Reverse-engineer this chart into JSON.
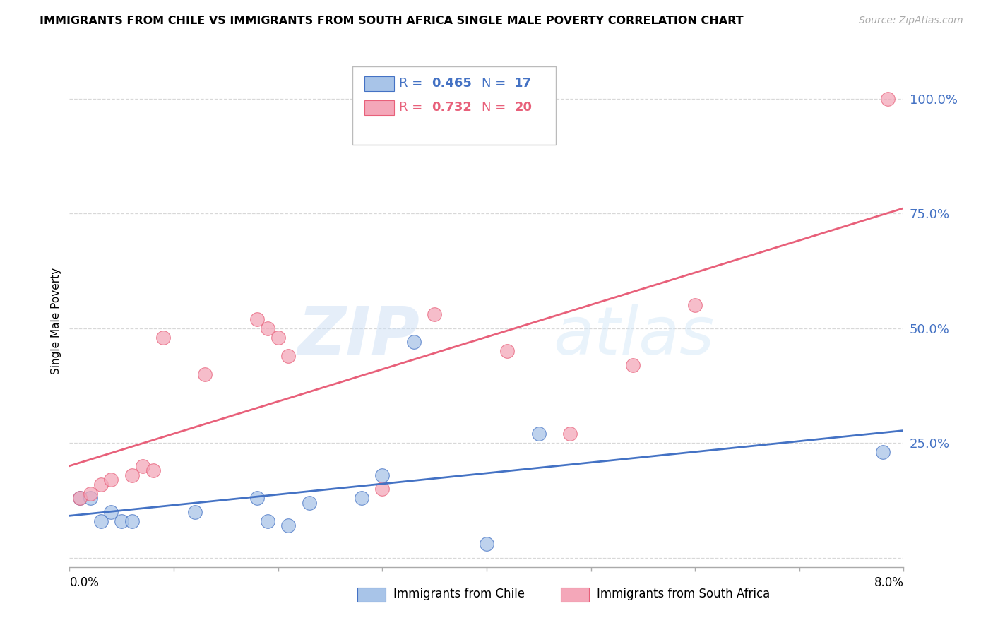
{
  "title": "IMMIGRANTS FROM CHILE VS IMMIGRANTS FROM SOUTH AFRICA SINGLE MALE POVERTY CORRELATION CHART",
  "source": "Source: ZipAtlas.com",
  "ylabel": "Single Male Poverty",
  "yticks": [
    0.0,
    0.25,
    0.5,
    0.75,
    1.0
  ],
  "ytick_labels": [
    "",
    "25.0%",
    "50.0%",
    "75.0%",
    "100.0%"
  ],
  "xlim": [
    0.0,
    0.08
  ],
  "ylim": [
    -0.02,
    1.05
  ],
  "chile_R": "0.465",
  "chile_N": "17",
  "sa_R": "0.732",
  "sa_N": "20",
  "chile_color": "#a8c4e8",
  "sa_color": "#f4a7b9",
  "chile_line_color": "#4472c4",
  "sa_line_color": "#e8607a",
  "chile_x": [
    0.001,
    0.002,
    0.003,
    0.004,
    0.005,
    0.006,
    0.012,
    0.018,
    0.019,
    0.021,
    0.023,
    0.028,
    0.03,
    0.033,
    0.04,
    0.045,
    0.078
  ],
  "chile_y": [
    0.13,
    0.13,
    0.08,
    0.1,
    0.08,
    0.08,
    0.1,
    0.13,
    0.08,
    0.07,
    0.12,
    0.13,
    0.18,
    0.47,
    0.03,
    0.27,
    0.23
  ],
  "sa_x": [
    0.001,
    0.002,
    0.003,
    0.004,
    0.006,
    0.007,
    0.008,
    0.009,
    0.013,
    0.018,
    0.019,
    0.02,
    0.021,
    0.03,
    0.035,
    0.042,
    0.048,
    0.054,
    0.06,
    0.0785
  ],
  "sa_y": [
    0.13,
    0.14,
    0.16,
    0.17,
    0.18,
    0.2,
    0.19,
    0.48,
    0.4,
    0.52,
    0.5,
    0.48,
    0.44,
    0.15,
    0.53,
    0.45,
    0.27,
    0.42,
    0.55,
    1.0
  ],
  "watermark_zip": "ZIP",
  "watermark_atlas": "atlas",
  "background_color": "#ffffff",
  "grid_color": "#d8d8d8"
}
